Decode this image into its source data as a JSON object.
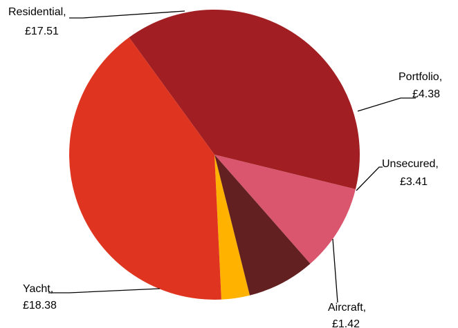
{
  "chart_data": {
    "type": "pie",
    "title": "",
    "currency": "£",
    "slices": [
      {
        "name": "Residential",
        "value_text": "£17.51",
        "value": 17.51,
        "color": "#A11F22"
      },
      {
        "name": "Portfolio",
        "value_text": "£4.38",
        "value": 4.38,
        "color": "#D9566E"
      },
      {
        "name": "Unsecured",
        "value_text": "£3.41",
        "value": 3.41,
        "color": "#622020"
      },
      {
        "name": "Aircraft",
        "value_text": "£1.42",
        "value": 1.42,
        "color": "#FFB300"
      },
      {
        "name": "Yacht",
        "value_text": "£18.38",
        "value": 18.38,
        "color": "#DF3520"
      }
    ]
  }
}
